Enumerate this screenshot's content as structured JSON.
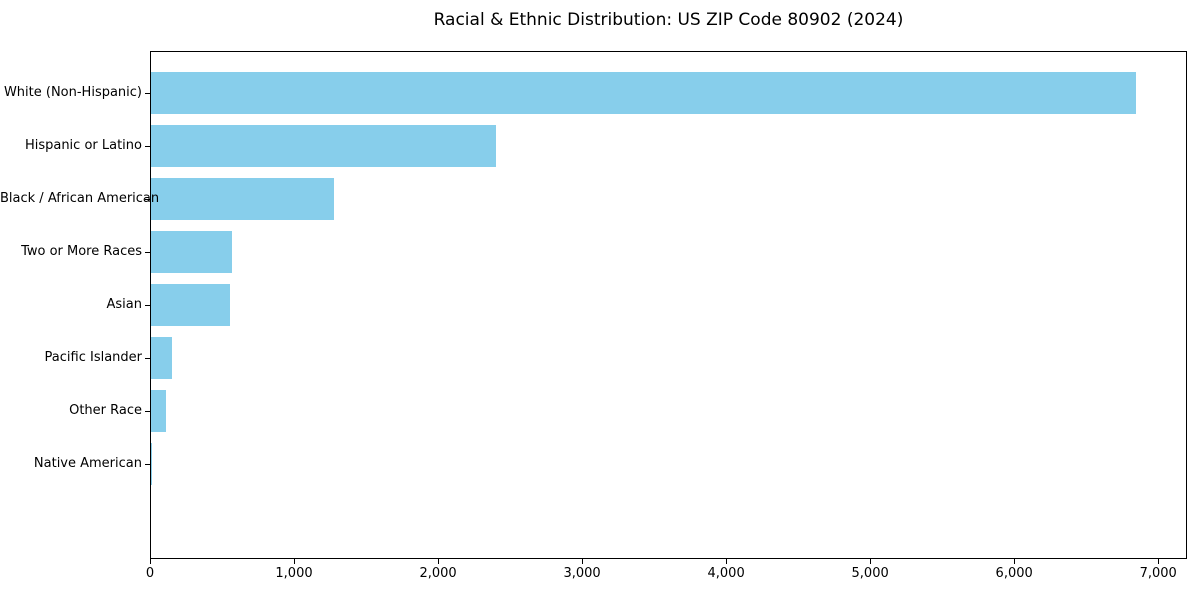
{
  "chart_data": {
    "type": "bar",
    "orientation": "horizontal",
    "title": "Racial & Ethnic Distribution: US ZIP Code 80902 (2024)",
    "categories": [
      "White (Non-Hispanic)",
      "Hispanic or Latino",
      "Black / African American",
      "Two or More Races",
      "Asian",
      "Pacific Islander",
      "Other Race",
      "Native American"
    ],
    "values": [
      6850,
      2400,
      1270,
      565,
      550,
      145,
      105,
      5
    ],
    "xlabel": "",
    "ylabel": "",
    "xlim": [
      0,
      7200
    ],
    "x_ticks": [
      0,
      1000,
      2000,
      3000,
      4000,
      5000,
      6000,
      7000
    ],
    "x_tick_labels": [
      "0",
      "1,000",
      "2,000",
      "3,000",
      "4,000",
      "5,000",
      "6,000",
      "7,000"
    ],
    "bar_color": "#87CEEB",
    "axis_color": "#000000",
    "grid": false,
    "legend_position": "none"
  }
}
